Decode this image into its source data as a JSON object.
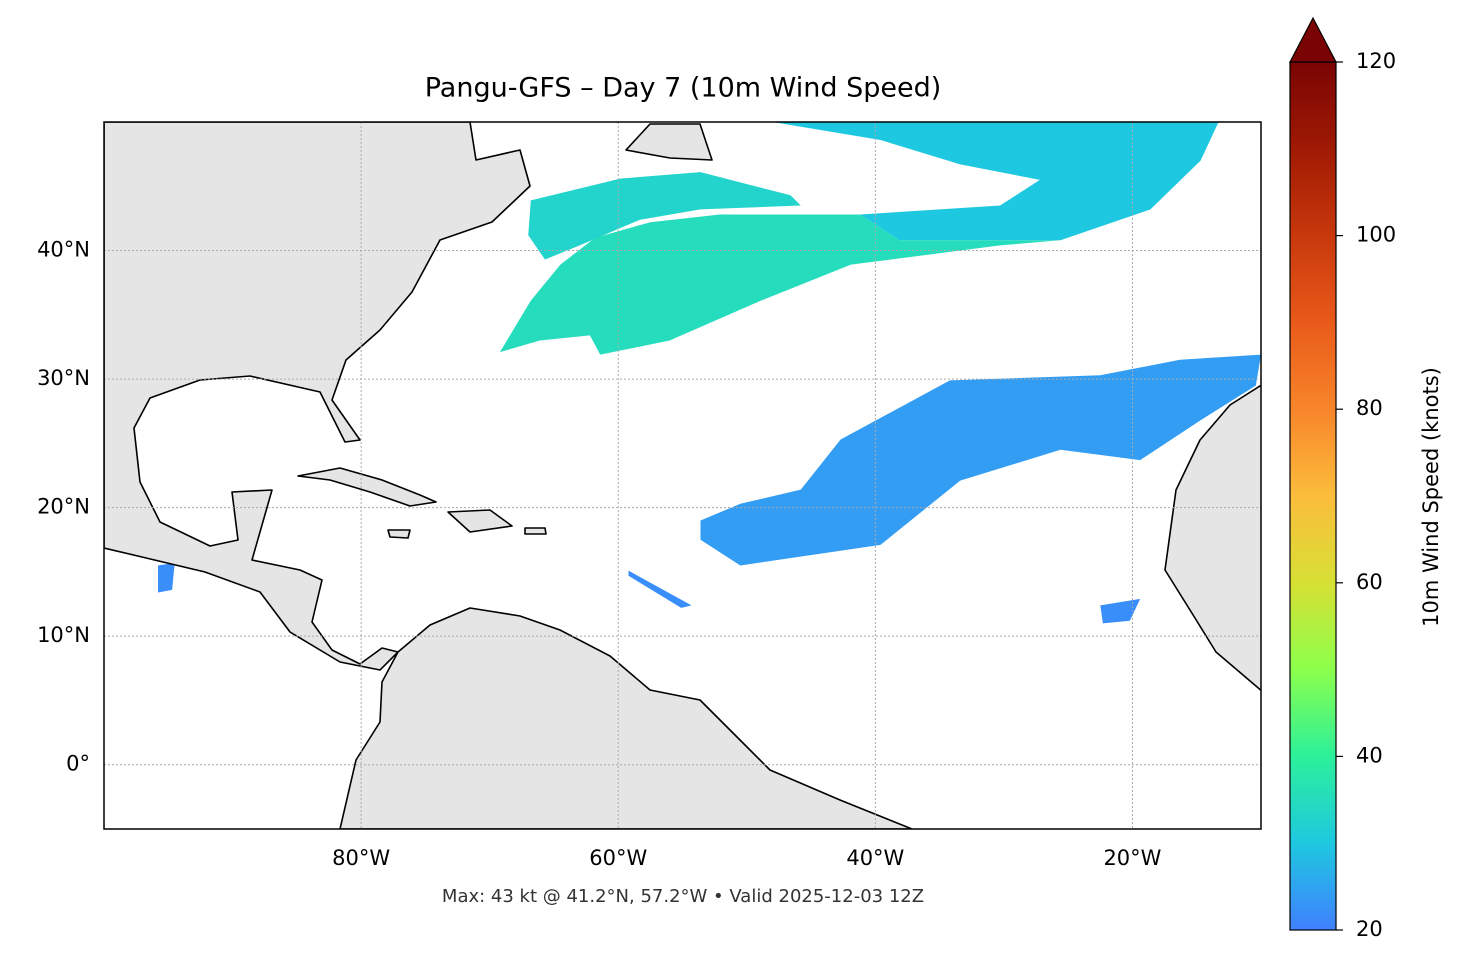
{
  "chart_data": {
    "type": "map",
    "title": "Pangu-GFS – Day 7 (10m Wind Speed)",
    "footnote": "Max: 43 kt @ 41.2°N, 57.2°W • Valid 2025-12-03 12Z",
    "xlim": [
      -100,
      -10
    ],
    "ylim": [
      -5,
      50
    ],
    "xticks": [
      {
        "value": -80,
        "label": "80°W"
      },
      {
        "value": -60,
        "label": "60°W"
      },
      {
        "value": -40,
        "label": "40°W"
      },
      {
        "value": -20,
        "label": "20°W"
      }
    ],
    "yticks": [
      {
        "value": 0,
        "label": "0°"
      },
      {
        "value": 10,
        "label": "10°N"
      },
      {
        "value": 20,
        "label": "20°N"
      },
      {
        "value": 30,
        "label": "30°N"
      },
      {
        "value": 40,
        "label": "40°N"
      }
    ],
    "grid": true,
    "colorbar": {
      "label": "10m Wind Speed (knots)",
      "clim": [
        20,
        120
      ],
      "ticks": [
        20,
        40,
        60,
        80,
        100,
        120
      ],
      "extend": "max",
      "colormap": [
        "#4080ff",
        "#1ec8e0",
        "#2cf09a",
        "#8cff4c",
        "#d7e034",
        "#fbbd3c",
        "#f8852a",
        "#e85a1a",
        "#c8380c",
        "#a01a04",
        "#7a0403"
      ]
    },
    "regions": [
      {
        "speed": 30,
        "lon": [
          -48.0,
          -13.3,
          -14.7,
          -18.6,
          -25.6,
          -38.1,
          -41.2,
          -30.3,
          -27.2,
          -33.4,
          -39.6
        ],
        "lat": [
          50,
          50,
          47.0,
          43.2,
          40.8,
          40.8,
          42.8,
          43.5,
          45.5,
          46.7,
          48.6
        ]
      },
      {
        "speed": 35,
        "lon": [
          -61.8,
          -57.5,
          -52.1,
          -41.2,
          -38.1,
          -25.6,
          -30.3,
          -41.9,
          -48.9,
          -56.0,
          -61.4,
          -62.2,
          -66.1,
          -69.2,
          -66.8,
          -64.5
        ],
        "lat": [
          41.0,
          42.2,
          42.8,
          42.8,
          40.8,
          40.8,
          40.4,
          38.9,
          36.1,
          33.0,
          31.9,
          33.4,
          33.0,
          32.1,
          36.1,
          38.9
        ]
      },
      {
        "speed": 33,
        "lon": [
          -66.8,
          -59.8,
          -53.6,
          -46.6,
          -45.8,
          -53.6,
          -58.3,
          -63.0,
          -65.7,
          -67.0
        ],
        "lat": [
          43.9,
          45.6,
          46.1,
          44.3,
          43.5,
          43.2,
          42.4,
          40.4,
          39.3,
          41.2
        ]
      },
      {
        "speed": 24,
        "lon": [
          -53.6,
          -50.5,
          -45.8,
          -42.7,
          -34.2,
          -22.5,
          -16.3,
          -10.0,
          -10.4,
          -14.7,
          -19.4,
          -25.6,
          -33.4,
          -39.6,
          -50.5,
          -53.6
        ],
        "lat": [
          19.0,
          20.3,
          21.4,
          25.3,
          29.9,
          30.3,
          31.5,
          31.9,
          29.5,
          26.8,
          23.7,
          24.5,
          22.1,
          17.1,
          15.5,
          17.5
        ]
      },
      {
        "speed": 22,
        "lon": [
          -59.2,
          -54.3,
          -55.1,
          -59.2
        ],
        "lat": [
          15.1,
          12.4,
          12.2,
          14.7
        ]
      },
      {
        "speed": 22,
        "lon": [
          -22.5,
          -19.4,
          -20.2,
          -22.3
        ],
        "lat": [
          12.4,
          12.9,
          11.2,
          11.0
        ]
      },
      {
        "speed": 22,
        "lon": [
          -95.8,
          -94.5,
          -94.7,
          -95.8
        ],
        "lat": [
          15.5,
          15.7,
          13.6,
          13.4
        ]
      }
    ]
  }
}
